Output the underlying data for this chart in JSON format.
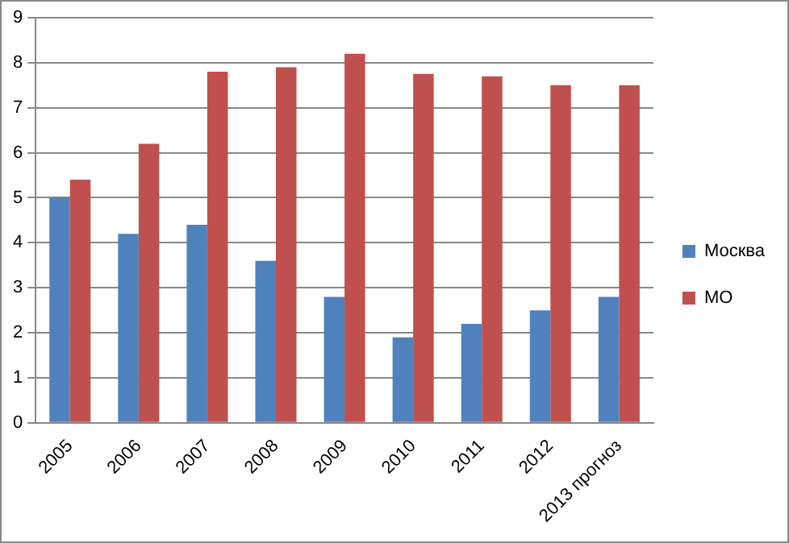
{
  "chart_data": {
    "type": "bar",
    "categories": [
      "2005",
      "2006",
      "2007",
      "2008",
      "2009",
      "2010",
      "2011",
      "2012",
      "2013 прогноз"
    ],
    "series": [
      {
        "name": "Москва",
        "color": "#4f81bd",
        "values": [
          5.0,
          4.2,
          4.4,
          3.6,
          2.8,
          1.9,
          2.2,
          2.5,
          2.8
        ]
      },
      {
        "name": "МО",
        "color": "#c0504d",
        "values": [
          5.4,
          6.2,
          7.8,
          7.9,
          8.2,
          7.75,
          7.7,
          7.5,
          7.5
        ]
      }
    ],
    "ylim": [
      0,
      9
    ],
    "yticks": [
      0,
      1,
      2,
      3,
      4,
      5,
      6,
      7,
      8,
      9
    ],
    "grid": "y",
    "legend": "right"
  }
}
